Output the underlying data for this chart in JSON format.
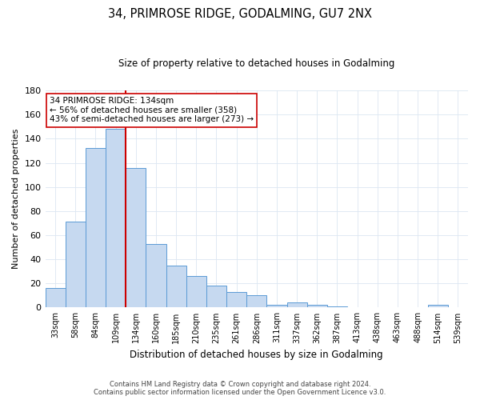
{
  "title": "34, PRIMROSE RIDGE, GODALMING, GU7 2NX",
  "subtitle": "Size of property relative to detached houses in Godalming",
  "xlabel": "Distribution of detached houses by size in Godalming",
  "ylabel": "Number of detached properties",
  "bar_labels": [
    "33sqm",
    "58sqm",
    "84sqm",
    "109sqm",
    "134sqm",
    "160sqm",
    "185sqm",
    "210sqm",
    "235sqm",
    "261sqm",
    "286sqm",
    "311sqm",
    "337sqm",
    "362sqm",
    "387sqm",
    "413sqm",
    "438sqm",
    "463sqm",
    "488sqm",
    "514sqm",
    "539sqm"
  ],
  "bar_values": [
    16,
    71,
    132,
    148,
    116,
    53,
    35,
    26,
    18,
    13,
    10,
    2,
    4,
    2,
    1,
    0,
    0,
    0,
    0,
    2,
    0
  ],
  "bar_color": "#c6d9f0",
  "bar_edge_color": "#5b9bd5",
  "vline_x_idx": 4,
  "vline_color": "#cc0000",
  "ylim": [
    0,
    180
  ],
  "yticks": [
    0,
    20,
    40,
    60,
    80,
    100,
    120,
    140,
    160,
    180
  ],
  "annotation_title": "34 PRIMROSE RIDGE: 134sqm",
  "annotation_line1": "← 56% of detached houses are smaller (358)",
  "annotation_line2": "43% of semi-detached houses are larger (273) →",
  "annotation_box_color": "#ffffff",
  "annotation_box_edgecolor": "#cc0000",
  "footer_line1": "Contains HM Land Registry data © Crown copyright and database right 2024.",
  "footer_line2": "Contains public sector information licensed under the Open Government Licence v3.0.",
  "background_color": "#ffffff",
  "grid_color": "#dce6f1"
}
